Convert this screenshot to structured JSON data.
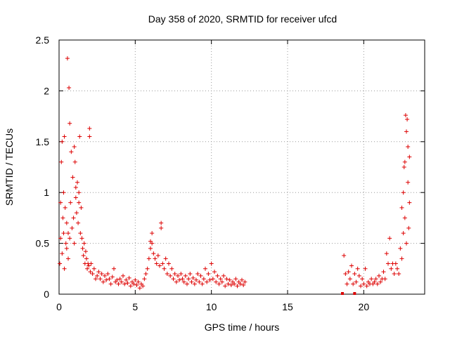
{
  "chart_data": {
    "type": "scatter",
    "title": "Day 358 of 2020, SRMTID for receiver ufcd",
    "xlabel": "GPS time / hours",
    "ylabel": "SRMTID / TECUs",
    "xlim": [
      0,
      24
    ],
    "ylim": [
      0,
      2.5
    ],
    "x_ticks": [
      0,
      5,
      10,
      15,
      20
    ],
    "y_ticks": [
      0,
      0.5,
      1,
      1.5,
      2,
      2.5
    ],
    "x_tick_labels": [
      "0",
      "5",
      "10",
      "15",
      "20"
    ],
    "y_tick_labels": [
      "0",
      "0.5",
      "1",
      "1.5",
      "2",
      "2.5"
    ],
    "grid": true,
    "marker": "+",
    "series": [
      {
        "name": "SRMTID",
        "color": "#dd0000",
        "points": [
          [
            0.05,
            0.3
          ],
          [
            0.1,
            0.55
          ],
          [
            0.1,
            0.9
          ],
          [
            0.15,
            1.3
          ],
          [
            0.2,
            1.5
          ],
          [
            0.2,
            0.4
          ],
          [
            0.25,
            0.75
          ],
          [
            0.3,
            1.0
          ],
          [
            0.3,
            0.6
          ],
          [
            0.35,
            1.55
          ],
          [
            0.35,
            0.25
          ],
          [
            0.4,
            0.85
          ],
          [
            0.45,
            0.5
          ],
          [
            0.5,
            0.7
          ],
          [
            0.5,
            0.45
          ],
          [
            0.55,
            2.32
          ],
          [
            0.6,
            0.6
          ],
          [
            0.6,
            0.35
          ],
          [
            0.65,
            2.03
          ],
          [
            0.7,
            1.68
          ],
          [
            0.7,
            0.55
          ],
          [
            0.75,
            0.9
          ],
          [
            0.8,
            1.4
          ],
          [
            0.85,
            0.65
          ],
          [
            0.9,
            1.15
          ],
          [
            0.95,
            0.75
          ],
          [
            1.0,
            1.45
          ],
          [
            1.0,
            0.5
          ],
          [
            1.05,
            1.3
          ],
          [
            1.1,
            0.95
          ],
          [
            1.1,
            1.05
          ],
          [
            1.15,
            0.8
          ],
          [
            1.2,
            1.1
          ],
          [
            1.25,
            0.7
          ],
          [
            1.3,
            1.0
          ],
          [
            1.3,
            0.9
          ],
          [
            1.35,
            1.55
          ],
          [
            1.4,
            0.6
          ],
          [
            1.45,
            0.85
          ],
          [
            1.5,
            0.55
          ],
          [
            1.55,
            0.45
          ],
          [
            1.6,
            0.38
          ],
          [
            1.65,
            0.5
          ],
          [
            1.7,
            0.3
          ],
          [
            1.75,
            0.42
          ],
          [
            1.8,
            0.35
          ],
          [
            1.85,
            0.25
          ],
          [
            1.9,
            0.3
          ],
          [
            1.95,
            0.28
          ],
          [
            2.0,
            1.63
          ],
          [
            2.0,
            1.55
          ],
          [
            2.05,
            0.22
          ],
          [
            2.1,
            0.3
          ],
          [
            2.2,
            0.2
          ],
          [
            2.3,
            0.25
          ],
          [
            2.4,
            0.15
          ],
          [
            2.5,
            0.18
          ],
          [
            2.6,
            0.22
          ],
          [
            2.7,
            0.15
          ],
          [
            2.8,
            0.2
          ],
          [
            2.9,
            0.12
          ],
          [
            3.0,
            0.18
          ],
          [
            3.1,
            0.14
          ],
          [
            3.2,
            0.2
          ],
          [
            3.3,
            0.15
          ],
          [
            3.4,
            0.1
          ],
          [
            3.5,
            0.17
          ],
          [
            3.6,
            0.25
          ],
          [
            3.7,
            0.12
          ],
          [
            3.8,
            0.14
          ],
          [
            3.9,
            0.1
          ],
          [
            4.0,
            0.15
          ],
          [
            4.1,
            0.12
          ],
          [
            4.2,
            0.18
          ],
          [
            4.3,
            0.1
          ],
          [
            4.4,
            0.14
          ],
          [
            4.5,
            0.11
          ],
          [
            4.6,
            0.16
          ],
          [
            4.7,
            0.08
          ],
          [
            4.8,
            0.12
          ],
          [
            4.9,
            0.1
          ],
          [
            5.0,
            0.14
          ],
          [
            5.1,
            0.09
          ],
          [
            5.2,
            0.12
          ],
          [
            5.3,
            0.06
          ],
          [
            5.4,
            0.1
          ],
          [
            5.5,
            0.08
          ],
          [
            5.6,
            0.15
          ],
          [
            5.7,
            0.2
          ],
          [
            5.8,
            0.25
          ],
          [
            5.9,
            0.35
          ],
          [
            6.0,
            0.45
          ],
          [
            6.0,
            0.52
          ],
          [
            6.1,
            0.5
          ],
          [
            6.1,
            0.6
          ],
          [
            6.2,
            0.4
          ],
          [
            6.3,
            0.35
          ],
          [
            6.4,
            0.3
          ],
          [
            6.5,
            0.38
          ],
          [
            6.6,
            0.28
          ],
          [
            6.7,
            0.7
          ],
          [
            6.7,
            0.65
          ],
          [
            6.8,
            0.3
          ],
          [
            6.9,
            0.25
          ],
          [
            7.0,
            0.35
          ],
          [
            7.1,
            0.2
          ],
          [
            7.2,
            0.3
          ],
          [
            7.3,
            0.18
          ],
          [
            7.4,
            0.25
          ],
          [
            7.5,
            0.15
          ],
          [
            7.6,
            0.2
          ],
          [
            7.7,
            0.12
          ],
          [
            7.8,
            0.18
          ],
          [
            7.9,
            0.14
          ],
          [
            8.0,
            0.2
          ],
          [
            8.1,
            0.15
          ],
          [
            8.2,
            0.12
          ],
          [
            8.3,
            0.18
          ],
          [
            8.4,
            0.1
          ],
          [
            8.5,
            0.15
          ],
          [
            8.6,
            0.2
          ],
          [
            8.7,
            0.12
          ],
          [
            8.8,
            0.16
          ],
          [
            8.9,
            0.1
          ],
          [
            9.0,
            0.14
          ],
          [
            9.1,
            0.2
          ],
          [
            9.2,
            0.12
          ],
          [
            9.3,
            0.18
          ],
          [
            9.4,
            0.1
          ],
          [
            9.5,
            0.15
          ],
          [
            9.6,
            0.25
          ],
          [
            9.7,
            0.12
          ],
          [
            9.8,
            0.2
          ],
          [
            9.9,
            0.14
          ],
          [
            10.0,
            0.3
          ],
          [
            10.1,
            0.15
          ],
          [
            10.2,
            0.22
          ],
          [
            10.3,
            0.12
          ],
          [
            10.4,
            0.18
          ],
          [
            10.5,
            0.1
          ],
          [
            10.6,
            0.15
          ],
          [
            10.7,
            0.12
          ],
          [
            10.8,
            0.18
          ],
          [
            10.9,
            0.08
          ],
          [
            11.0,
            0.15
          ],
          [
            11.1,
            0.1
          ],
          [
            11.2,
            0.14
          ],
          [
            11.3,
            0.09
          ],
          [
            11.4,
            0.12
          ],
          [
            11.5,
            0.1
          ],
          [
            11.6,
            0.15
          ],
          [
            11.7,
            0.08
          ],
          [
            11.8,
            0.12
          ],
          [
            11.9,
            0.1
          ],
          [
            12.0,
            0.14
          ],
          [
            12.1,
            0.09
          ],
          [
            12.2,
            0.12
          ],
          [
            18.7,
            0.38
          ],
          [
            18.8,
            0.2
          ],
          [
            18.9,
            0.1
          ],
          [
            19.0,
            0.22
          ],
          [
            19.1,
            0.15
          ],
          [
            19.2,
            0.28
          ],
          [
            19.3,
            0.1
          ],
          [
            19.4,
            0.2
          ],
          [
            19.5,
            0.12
          ],
          [
            19.6,
            0.25
          ],
          [
            19.7,
            0.18
          ],
          [
            19.8,
            0.08
          ],
          [
            19.9,
            0.15
          ],
          [
            20.0,
            0.1
          ],
          [
            20.1,
            0.25
          ],
          [
            20.2,
            0.08
          ],
          [
            20.3,
            0.12
          ],
          [
            20.4,
            0.1
          ],
          [
            20.5,
            0.15
          ],
          [
            20.6,
            0.1
          ],
          [
            20.7,
            0.12
          ],
          [
            20.8,
            0.15
          ],
          [
            20.9,
            0.1
          ],
          [
            21.0,
            0.18
          ],
          [
            21.1,
            0.12
          ],
          [
            21.2,
            0.15
          ],
          [
            21.3,
            0.22
          ],
          [
            21.4,
            0.15
          ],
          [
            21.5,
            0.4
          ],
          [
            21.6,
            0.3
          ],
          [
            21.7,
            0.55
          ],
          [
            21.8,
            0.25
          ],
          [
            21.9,
            0.3
          ],
          [
            22.0,
            0.2
          ],
          [
            22.1,
            0.3
          ],
          [
            22.2,
            0.25
          ],
          [
            22.3,
            0.2
          ],
          [
            22.4,
            0.45
          ],
          [
            22.5,
            0.85
          ],
          [
            22.5,
            0.35
          ],
          [
            22.6,
            1.0
          ],
          [
            22.6,
            0.6
          ],
          [
            22.65,
            1.25
          ],
          [
            22.7,
            0.75
          ],
          [
            22.7,
            1.3
          ],
          [
            22.75,
            1.76
          ],
          [
            22.8,
            1.6
          ],
          [
            22.8,
            0.5
          ],
          [
            22.85,
            1.72
          ],
          [
            22.9,
            1.1
          ],
          [
            22.9,
            1.45
          ],
          [
            22.95,
            0.65
          ],
          [
            23.0,
            0.9
          ],
          [
            23.0,
            1.35
          ]
        ]
      }
    ],
    "flat_markers": [
      {
        "type": "square",
        "x": 18.6,
        "y": 0
      },
      {
        "type": "square",
        "x": 19.4,
        "y": 0
      }
    ]
  }
}
